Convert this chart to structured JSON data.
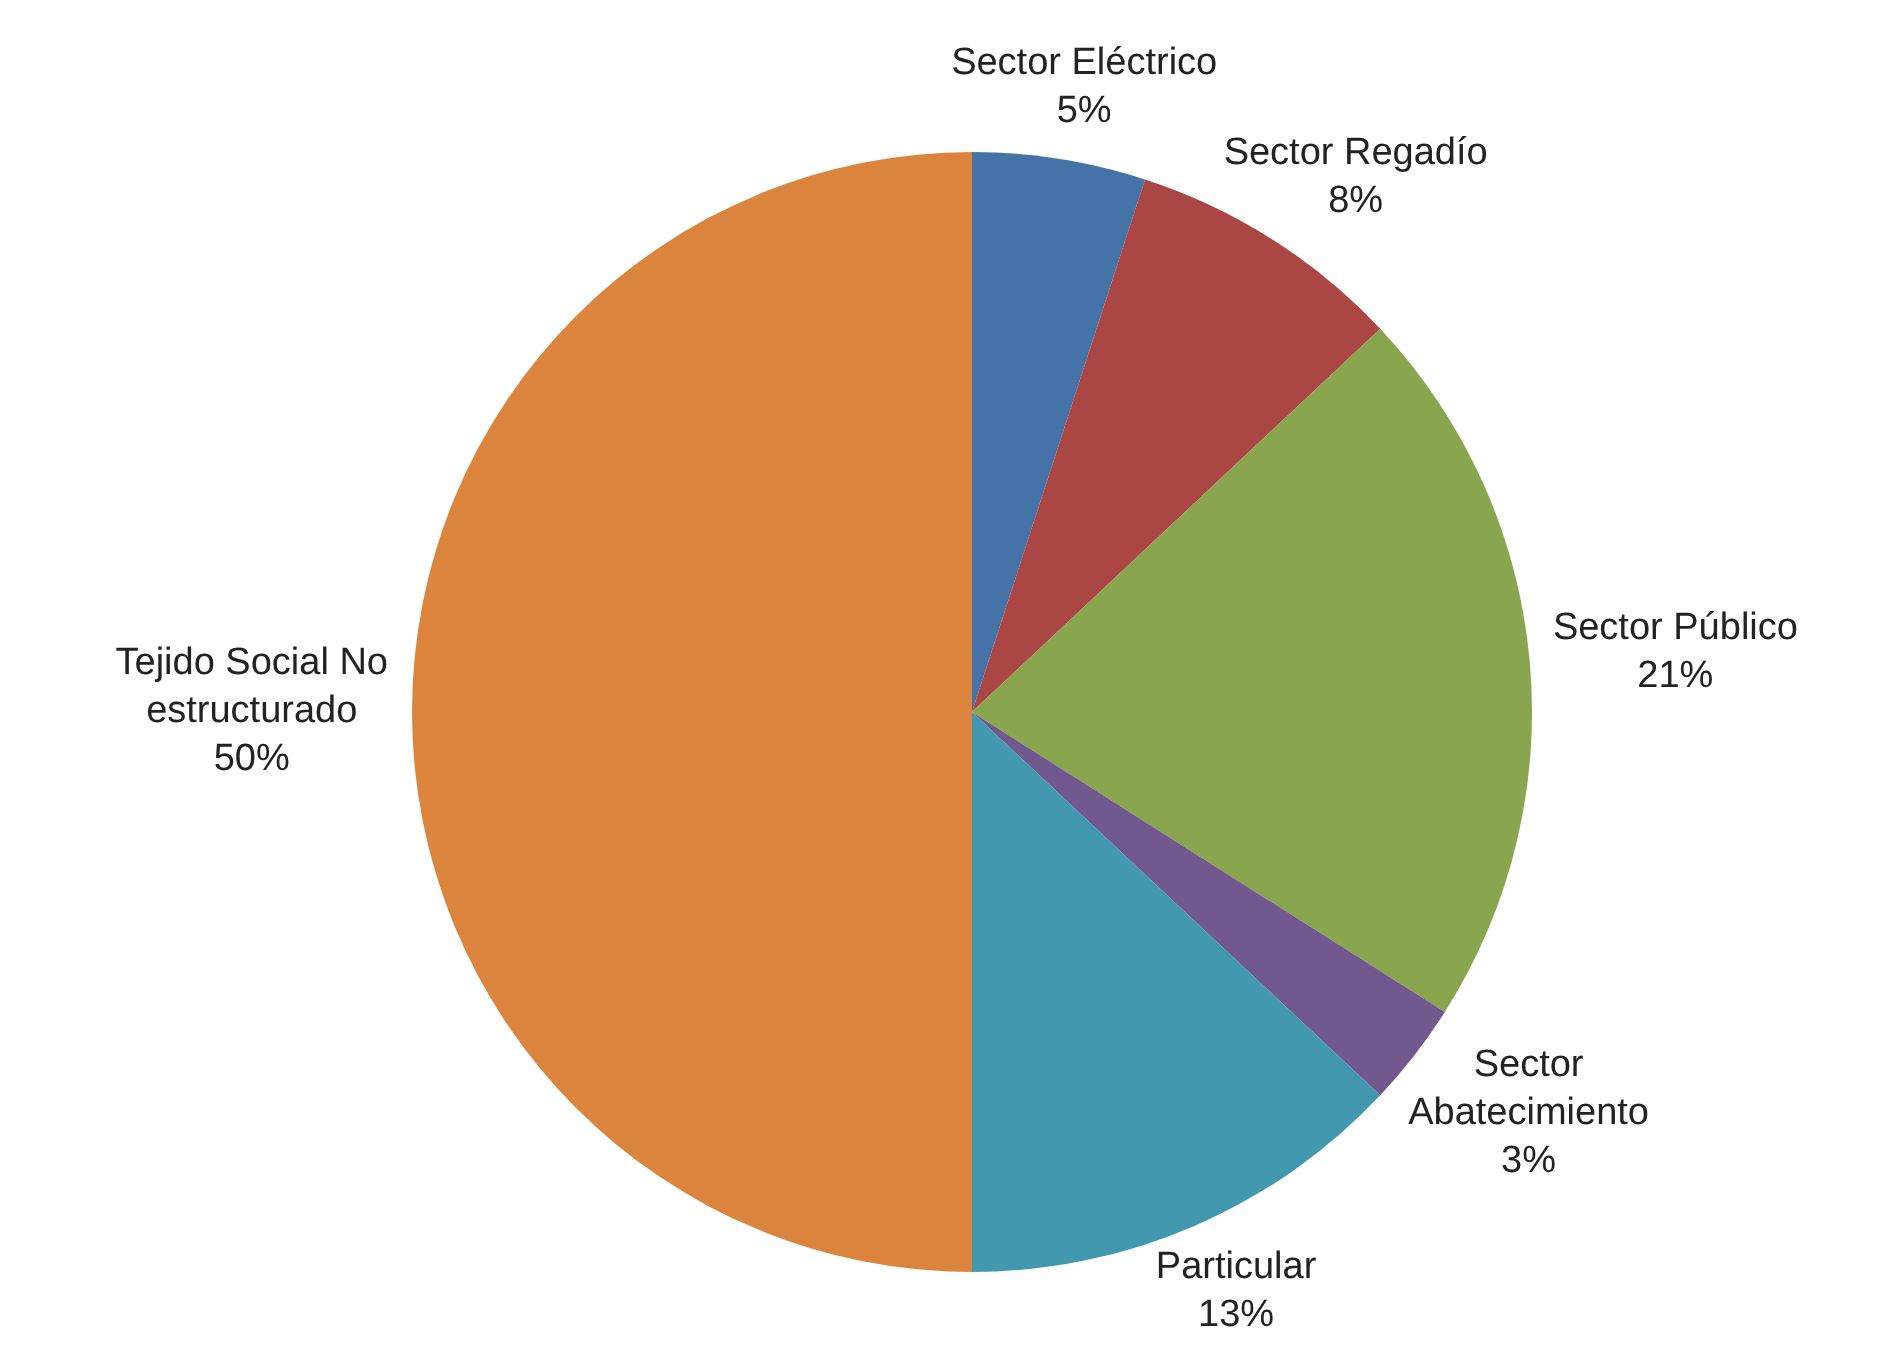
{
  "chart_data": {
    "type": "pie",
    "categories": [
      "Sector Eléctrico",
      "Sector Regadío",
      "Sector Público",
      "Sector Abatecimiento",
      "Particular",
      "Tejido Social No estructurado"
    ],
    "values": [
      5,
      8,
      21,
      3,
      13,
      50
    ],
    "value_labels": [
      "5%",
      "8%",
      "21%",
      "3%",
      "13%",
      "50%"
    ],
    "colors": [
      "#4572a7",
      "#aa4643",
      "#89a54e",
      "#71588f",
      "#4198af",
      "#db843d"
    ]
  }
}
